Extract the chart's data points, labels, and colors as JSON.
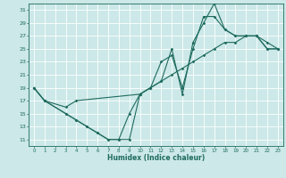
{
  "xlabel": "Humidex (Indice chaleur)",
  "ylabel": "",
  "xlim": [
    -0.5,
    23.5
  ],
  "ylim": [
    10,
    32
  ],
  "yticks": [
    11,
    13,
    15,
    17,
    19,
    21,
    23,
    25,
    27,
    29,
    31
  ],
  "xticks": [
    0,
    1,
    2,
    3,
    4,
    5,
    6,
    7,
    8,
    9,
    10,
    11,
    12,
    13,
    14,
    15,
    16,
    17,
    18,
    19,
    20,
    21,
    22,
    23
  ],
  "bg_color": "#cce8e8",
  "grid_color": "#ffffff",
  "line_color": "#1e6b5e",
  "series": [
    {
      "x": [
        0,
        1,
        3,
        4,
        5,
        6,
        7,
        8,
        9,
        10,
        11,
        12,
        13,
        14,
        15,
        16,
        17,
        18,
        19,
        20,
        21,
        22,
        23
      ],
      "y": [
        19,
        17,
        15,
        14,
        13,
        12,
        11,
        11,
        11,
        18,
        19,
        23,
        24,
        19,
        25,
        30,
        30,
        28,
        27,
        27,
        27,
        25,
        25
      ]
    },
    {
      "x": [
        0,
        1,
        3,
        4,
        5,
        6,
        7,
        8,
        9,
        10,
        11,
        12,
        13,
        14,
        15,
        16,
        17,
        18,
        19,
        20,
        21,
        22,
        23
      ],
      "y": [
        19,
        17,
        15,
        14,
        13,
        12,
        11,
        11,
        15,
        18,
        19,
        20,
        25,
        18,
        26,
        29,
        32,
        28,
        27,
        27,
        27,
        25,
        25
      ]
    },
    {
      "x": [
        0,
        1,
        3,
        4,
        10,
        11,
        12,
        13,
        14,
        15,
        16,
        17,
        18,
        19,
        20,
        21,
        22,
        23
      ],
      "y": [
        19,
        17,
        16,
        17,
        18,
        19,
        20,
        21,
        22,
        23,
        24,
        25,
        26,
        26,
        27,
        27,
        26,
        25
      ]
    }
  ]
}
